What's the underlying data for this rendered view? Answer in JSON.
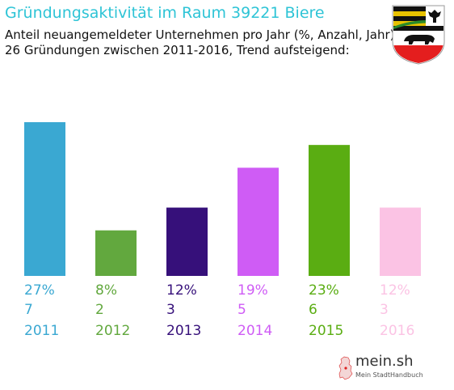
{
  "header": {
    "title": "Gründungsaktivität im Raum 39221 Biere",
    "subtitle_line1": "Anteil neuangemeldeter Unternehmen pro Jahr (%, Anzahl, Jahr)",
    "subtitle_line2": "26 Gründungen zwischen 2011-2016, Trend aufsteigend:"
  },
  "brand": {
    "name": "mein.sh",
    "tagline": "Mein StadtHandbuch"
  },
  "icons": {
    "coat": "coat-of-arms-icon",
    "map": "germany-map-icon"
  },
  "chart_data": {
    "type": "bar",
    "categories": [
      "2011",
      "2012",
      "2013",
      "2014",
      "2015",
      "2016"
    ],
    "values": [
      27,
      8,
      12,
      19,
      23,
      12
    ],
    "value_labels": [
      "27%",
      "8%",
      "12%",
      "19%",
      "23%",
      "12%"
    ],
    "counts": [
      "7",
      "2",
      "3",
      "5",
      "6",
      "3"
    ],
    "colors": [
      "#3aa8d2",
      "#62a83e",
      "#36107a",
      "#cf5cf5",
      "#5aad12",
      "#fbc3e4"
    ],
    "ylim": [
      0,
      27
    ],
    "grid": false,
    "legend": "none"
  }
}
